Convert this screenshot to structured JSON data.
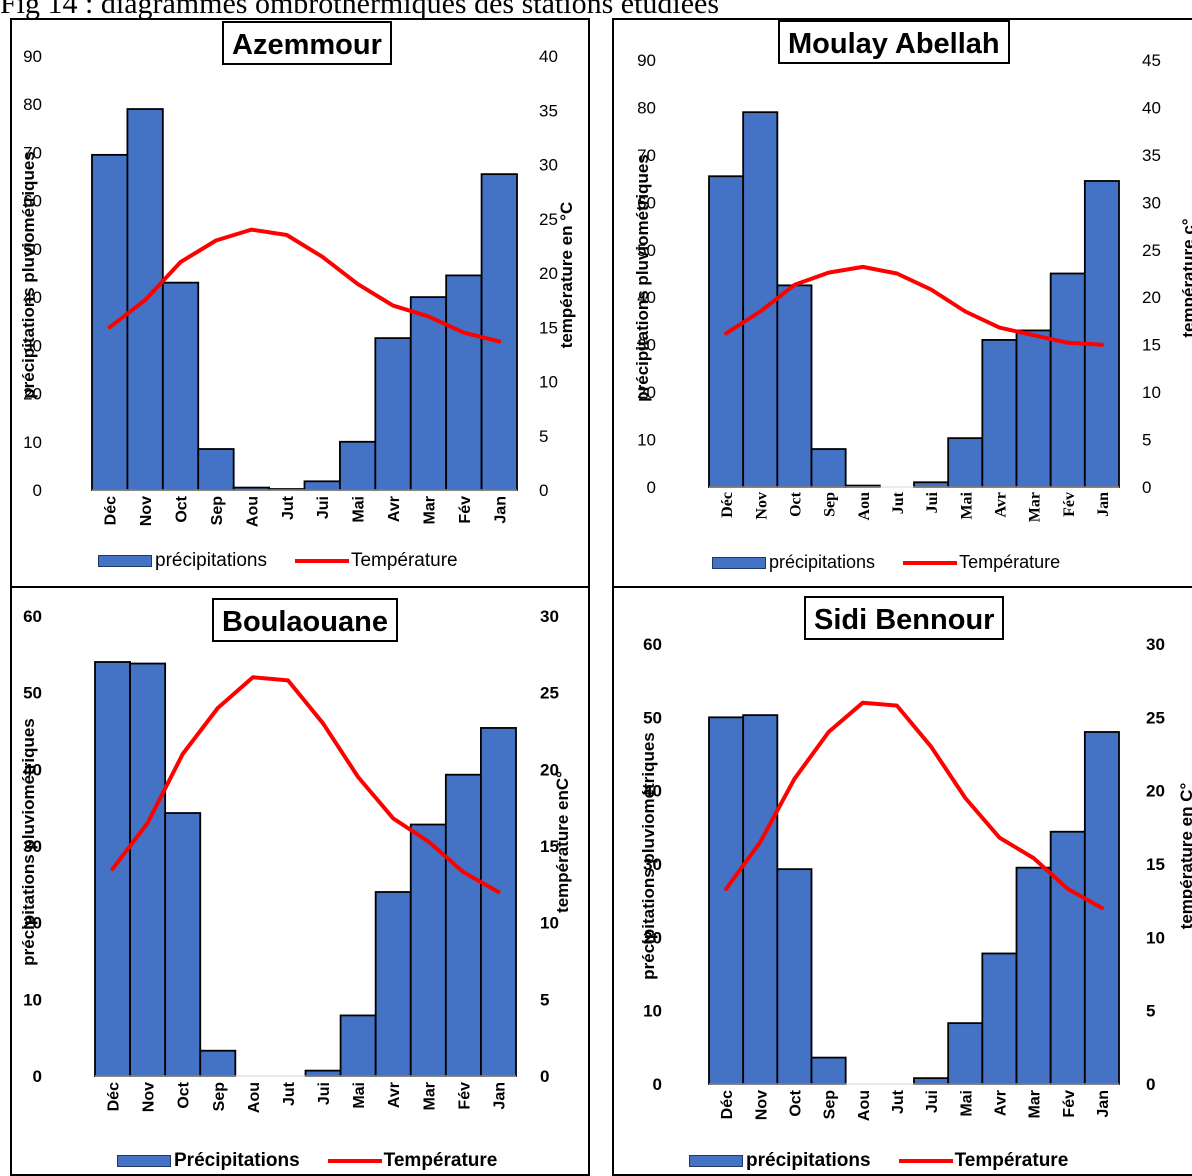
{
  "caption": "Fig 14 : diagrammes ombrothermiques des stations étudiées",
  "colors": {
    "bar_fill": "#4472C4",
    "bar_stroke": "#000000",
    "line": "#FF0000"
  },
  "chart_data": [
    {
      "type": "bar",
      "title": "Azemmour",
      "categories": [
        "Déc",
        "Nov",
        "Oct",
        "Sep",
        "Aou",
        "Jut",
        "Jui",
        "Mai",
        "Avr",
        "Mar",
        "Fév",
        "Jan"
      ],
      "series": [
        {
          "name": "précipitations",
          "kind": "bar",
          "axis": "left",
          "values": [
            69.5,
            79,
            43,
            8.5,
            0.5,
            0.2,
            1.8,
            10,
            31.5,
            40,
            44.5,
            65.5
          ]
        },
        {
          "name": "Température",
          "kind": "line",
          "axis": "right",
          "values": [
            15,
            17.5,
            21,
            23,
            24,
            23.5,
            21.5,
            19,
            17,
            16,
            14.5,
            13.7
          ]
        }
      ],
      "ylabel": "précipitations pluviométriques",
      "y2label": "température en °C",
      "ylim": [
        0,
        90
      ],
      "yticks": [
        0,
        10,
        20,
        30,
        40,
        50,
        60,
        70,
        80,
        90
      ],
      "y2lim": [
        0,
        40
      ],
      "y2ticks": [
        0,
        5,
        10,
        15,
        20,
        25,
        30,
        35,
        40
      ],
      "legend": "bottom",
      "grid": false
    },
    {
      "type": "bar",
      "title": "Moulay Abellah",
      "categories": [
        "Déc",
        "Nov",
        "Oct",
        "Sep",
        "Aou",
        "Jut",
        "Jui",
        "Mai",
        "Avr",
        "Mar",
        "Fév",
        "Jan"
      ],
      "series": [
        {
          "name": "précipitations",
          "kind": "bar",
          "axis": "left",
          "values": [
            65.5,
            79,
            42.5,
            8,
            0.3,
            0,
            1,
            10.3,
            31,
            33,
            45,
            64.5
          ]
        },
        {
          "name": "Température",
          "kind": "line",
          "axis": "right",
          "values": [
            16.2,
            18.5,
            21.3,
            22.6,
            23.2,
            22.5,
            20.8,
            18.5,
            16.8,
            16,
            15.2,
            15
          ]
        }
      ],
      "ylabel": "précipitations pluviométriques",
      "y2label": "température c°",
      "ylim": [
        0,
        90
      ],
      "yticks": [
        0,
        10,
        20,
        30,
        40,
        50,
        60,
        70,
        80,
        90
      ],
      "y2lim": [
        0,
        45
      ],
      "y2ticks": [
        0,
        5,
        10,
        15,
        20,
        25,
        30,
        35,
        40,
        45
      ],
      "legend": "bottom",
      "grid": false
    },
    {
      "type": "bar",
      "title": "Boulaouane",
      "categories": [
        "Déc",
        "Nov",
        "Oct",
        "Sep",
        "Aou",
        "Jut",
        "Jui",
        "Mai",
        "Avr",
        "Mar",
        "Fév",
        "Jan"
      ],
      "series": [
        {
          "name": "Précipitations",
          "kind": "bar",
          "axis": "left",
          "values": [
            54,
            53.8,
            34.3,
            3.3,
            0,
            0,
            0.7,
            7.9,
            24,
            32.8,
            39.3,
            45.4
          ]
        },
        {
          "name": "Température",
          "kind": "line",
          "axis": "right",
          "values": [
            13.5,
            16.5,
            21,
            24,
            26,
            25.8,
            23,
            19.5,
            16.8,
            15.3,
            13.3,
            12
          ]
        }
      ],
      "ylabel": "précipitations pluviométriques",
      "y2label": "température enC°",
      "ylim": [
        0,
        60
      ],
      "yticks": [
        0,
        10,
        20,
        30,
        40,
        50,
        60
      ],
      "y2lim": [
        0,
        30
      ],
      "y2ticks": [
        0,
        5,
        10,
        15,
        20,
        25,
        30
      ],
      "legend": "bottom",
      "grid": false
    },
    {
      "type": "bar",
      "title": "Sidi Bennour",
      "categories": [
        "Déc",
        "Nov",
        "Oct",
        "Sep",
        "Aou",
        "Jut",
        "Jui",
        "Mai",
        "Avr",
        "Mar",
        "Fév",
        "Jan"
      ],
      "series": [
        {
          "name": "précipitations",
          "kind": "bar",
          "axis": "left",
          "values": [
            50,
            50.3,
            29.3,
            3.6,
            0,
            0,
            0.8,
            8.3,
            17.8,
            29.5,
            34.4,
            48
          ]
        },
        {
          "name": "Température",
          "kind": "line",
          "axis": "right",
          "values": [
            13.3,
            16.5,
            20.8,
            24,
            26,
            25.8,
            23,
            19.5,
            16.8,
            15.4,
            13.3,
            12
          ]
        }
      ],
      "ylabel": "précipitations pluviométriques",
      "y2label": "température en C°",
      "ylim": [
        0,
        60
      ],
      "yticks": [
        0,
        10,
        20,
        30,
        40,
        50,
        60
      ],
      "y2lim": [
        0,
        30
      ],
      "y2ticks": [
        0,
        5,
        10,
        15,
        20,
        25,
        30
      ],
      "legend": "bottom",
      "grid": false
    }
  ]
}
